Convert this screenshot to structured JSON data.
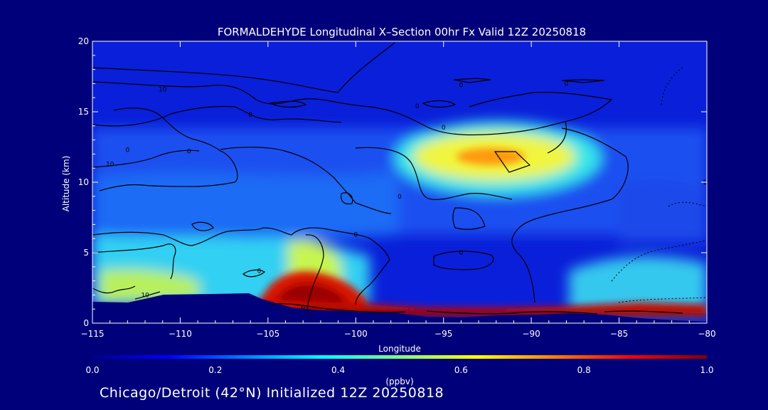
{
  "chart_data": {
    "type": "heatmap",
    "title": "FORMALDEHYDE Longitudinal X–Section 00hr  Fx Valid 12Z 20250818",
    "xlabel": "Longitude",
    "ylabel": "Altitude (km)",
    "xlim": [
      -115,
      -80
    ],
    "ylim": [
      0,
      20
    ],
    "x_ticks": [
      -115,
      -110,
      -105,
      -100,
      -95,
      -90,
      -85,
      -80
    ],
    "x_tick_labels": [
      "−115",
      "−110",
      "−105",
      "−100",
      "−95",
      "−90",
      "−85",
      "−80"
    ],
    "y_ticks": [
      0,
      5,
      10,
      15,
      20
    ],
    "y_tick_labels": [
      "0",
      "5",
      "10",
      "15",
      "20"
    ],
    "colorbar": {
      "label": "(ppbv)",
      "min": 0.0,
      "max": 1.0,
      "ticks": [
        0.0,
        0.2,
        0.4,
        0.6,
        0.8,
        1.0
      ],
      "tick_labels": [
        "0.0",
        "0.2",
        "0.4",
        "0.6",
        "0.8",
        "1.0"
      ]
    },
    "field_regions": [
      {
        "name": "surface-layer-east",
        "lon": [
          -106,
          -80
        ],
        "alt": [
          0.6,
          1.6
        ],
        "value": 1.0
      },
      {
        "name": "plume-rockies",
        "lon": [
          -104.5,
          -100
        ],
        "alt": [
          1.3,
          3.4
        ],
        "value": 0.95
      },
      {
        "name": "lower-troposphere-west",
        "lon": [
          -115,
          -100
        ],
        "alt": [
          1.8,
          6.5
        ],
        "value": 0.45
      },
      {
        "name": "upper-plume",
        "lon": [
          -96,
          -83
        ],
        "alt": [
          9.5,
          14
        ],
        "value": 0.6
      },
      {
        "name": "upper-plume-core",
        "lon": [
          -93,
          -89
        ],
        "alt": [
          11.5,
          12.5
        ],
        "value": 0.75
      },
      {
        "name": "mid-troposphere",
        "lon": [
          -115,
          -80
        ],
        "alt": [
          6,
          14
        ],
        "value": 0.25
      },
      {
        "name": "upper-troposphere",
        "lon": [
          -115,
          -80
        ],
        "alt": [
          14,
          20
        ],
        "value": 0.05
      }
    ],
    "contour_labels": [
      {
        "text": "10",
        "lon": -111,
        "alt": 16.6
      },
      {
        "text": "10",
        "lon": -114,
        "alt": 11.3
      },
      {
        "text": "0",
        "lon": -113,
        "alt": 12.3
      },
      {
        "text": "0",
        "lon": -109.5,
        "alt": 12.2
      },
      {
        "text": "0",
        "lon": -106,
        "alt": 14.8
      },
      {
        "text": "0",
        "lon": -94,
        "alt": 16.9
      },
      {
        "text": "0",
        "lon": -96.5,
        "alt": 15.4
      },
      {
        "text": "0",
        "lon": -88,
        "alt": 17.0
      },
      {
        "text": "0",
        "lon": -95,
        "alt": 13.9
      },
      {
        "text": "0",
        "lon": -97.5,
        "alt": 9.0
      },
      {
        "text": "0",
        "lon": -100,
        "alt": 6.3
      },
      {
        "text": "0",
        "lon": -94,
        "alt": 5.0
      },
      {
        "text": "0",
        "lon": -105.5,
        "alt": 3.7
      },
      {
        "text": "10",
        "lon": -112,
        "alt": 2.0
      },
      {
        "text": "0",
        "lon": -103,
        "alt": 1.1
      },
      {
        "text": "10",
        "lon": -80,
        "alt": 10
      }
    ]
  },
  "footer": "Chicago/Detroit (42°N) Initialized 12Z 20250818",
  "colors": {
    "background": "#00007a",
    "terrain": "#00007a",
    "contour": "#000000",
    "text": "#ffffff"
  }
}
